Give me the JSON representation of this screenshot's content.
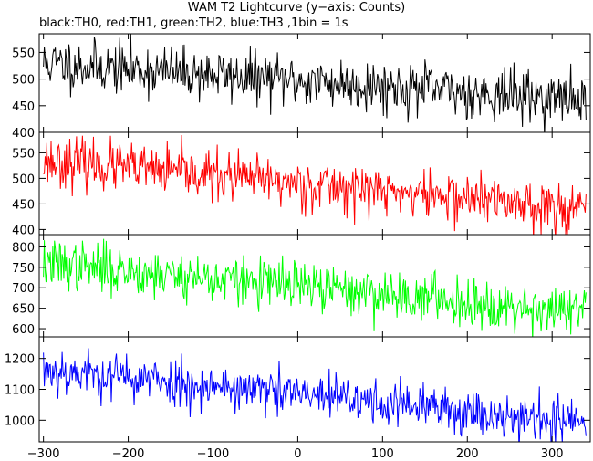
{
  "title": "WAM T2 Lightcurve (y−axis: Counts)",
  "subtitle": "black:TH0, red:TH1, green:TH2, blue:TH3 ,1bin = 1s",
  "chart_data": {
    "type": "line",
    "xlim": [
      -305,
      345
    ],
    "x_ticks": [
      -300,
      -200,
      -100,
      0,
      100,
      200,
      300
    ],
    "x_tick_labels": [
      "−300",
      "−200",
      "−100",
      "0",
      "100",
      "200",
      "300"
    ],
    "x_step": 1,
    "x_start": -300,
    "x_end": 340,
    "grid": false,
    "legend": "subtitle text",
    "panels": [
      {
        "name": "TH0",
        "color": "#000000",
        "ylim": [
          400,
          585
        ],
        "y_ticks": [
          400,
          450,
          500,
          550
        ],
        "y_tick_labels": [
          "400",
          "450",
          "500",
          "550"
        ],
        "trend_start": 530,
        "trend_end": 460,
        "noise": 24,
        "seed": 11
      },
      {
        "name": "TH1",
        "color": "#ff0000",
        "ylim": [
          390,
          590
        ],
        "y_ticks": [
          400,
          450,
          500,
          550
        ],
        "y_tick_labels": [
          "400",
          "450",
          "500",
          "550"
        ],
        "trend_start": 535,
        "trend_end": 440,
        "noise": 24,
        "seed": 23
      },
      {
        "name": "TH2",
        "color": "#00ff00",
        "ylim": [
          580,
          830
        ],
        "y_ticks": [
          600,
          650,
          700,
          750,
          800
        ],
        "y_tick_labels": [
          "600",
          "650",
          "700",
          "750",
          "800"
        ],
        "trend_start": 760,
        "trend_end": 640,
        "noise": 30,
        "seed": 37
      },
      {
        "name": "TH3",
        "color": "#0000ff",
        "ylim": [
          930,
          1270
        ],
        "y_ticks": [
          1000,
          1100,
          1200
        ],
        "y_tick_labels": [
          "1000",
          "1100",
          "1200"
        ],
        "trend_start": 1165,
        "trend_end": 990,
        "noise": 38,
        "seed": 53
      }
    ]
  }
}
